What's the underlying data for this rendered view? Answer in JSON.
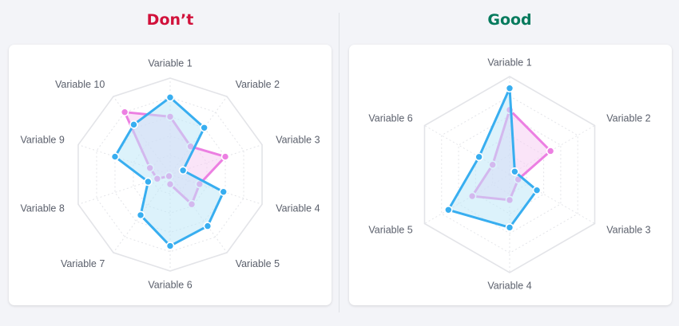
{
  "headings": {
    "bad": "Don’t",
    "good": "Good"
  },
  "colors": {
    "bad_title": "#d1113b",
    "good_title": "#057a5d",
    "series_blue": "#38aef0",
    "series_blue_fill": "#bfe8f7",
    "series_pink": "#ec7fe2",
    "series_pink_fill": "#f6cdf2",
    "grid": "#e3e4e8"
  },
  "chart_data": [
    {
      "type": "radar",
      "categories": [
        "Variable 1",
        "Variable 2",
        "Variable 3",
        "Variable 4",
        "Variable 5",
        "Variable 6",
        "Variable 7",
        "Variable 8",
        "Variable 9",
        "Variable 10"
      ],
      "rmax": 5,
      "grid_levels": 5,
      "series": [
        {
          "color_key": "series_blue",
          "values": [
            4.0,
            3.0,
            0.7,
            2.9,
            3.3,
            3.7,
            2.6,
            1.2,
            3.0,
            3.2
          ]
        },
        {
          "color_key": "series_pink",
          "values": [
            3.0,
            1.8,
            3.0,
            1.6,
            1.9,
            0.5,
            0.1,
            0.7,
            1.1,
            4.0
          ]
        }
      ]
    },
    {
      "type": "radar",
      "categories": [
        "Variable 1",
        "Variable 2",
        "Variable 3",
        "Variable 4",
        "Variable 5",
        "Variable 6"
      ],
      "rmax": 5,
      "grid_levels": 5,
      "series": [
        {
          "color_key": "series_blue",
          "values": [
            4.4,
            0.3,
            1.6,
            2.7,
            3.6,
            1.8
          ]
        },
        {
          "color_key": "series_pink",
          "values": [
            3.3,
            2.4,
            0.5,
            1.3,
            2.2,
            1.0
          ]
        }
      ]
    }
  ]
}
